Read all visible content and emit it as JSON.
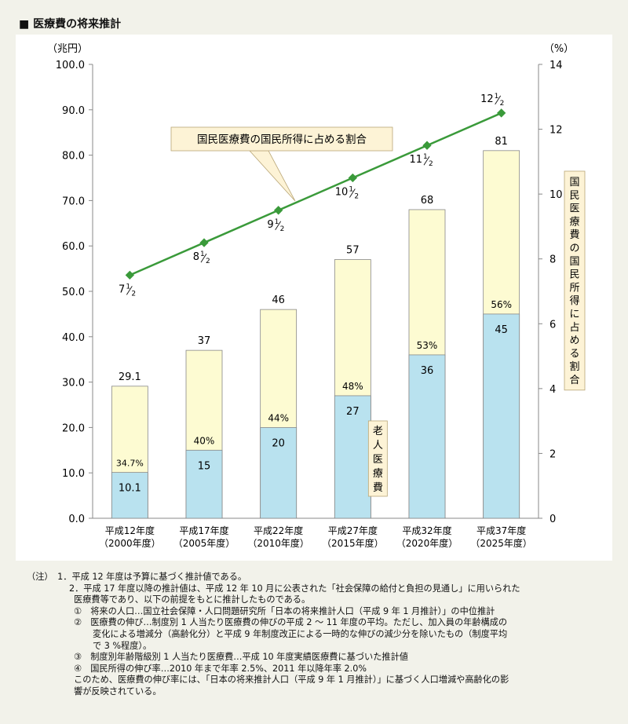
{
  "title": "■ 医療費の将来推計",
  "chart_data": {
    "type": "bar",
    "categories": [
      [
        "平成12年度",
        "（2000年度）"
      ],
      [
        "平成17年度",
        "（2005年度）"
      ],
      [
        "平成22年度",
        "（2010年度）"
      ],
      [
        "平成27年度",
        "（2015年度）"
      ],
      [
        "平成32年度",
        "（2020年度）"
      ],
      [
        "平成37年度",
        "（2025年度）"
      ]
    ],
    "series": [
      {
        "name": "老人医療費",
        "values": [
          10.1,
          15,
          20,
          27,
          36,
          45
        ]
      },
      {
        "values": [
          29.1,
          37,
          46,
          57,
          68,
          81
        ]
      }
    ],
    "bar_total_labels": [
      "29.1",
      "37",
      "46",
      "57",
      "68",
      "81"
    ],
    "bar_elderly_labels": [
      "10.1",
      "15",
      "20",
      "27",
      "36",
      "45"
    ],
    "share_labels": [
      "34.7%",
      "40%",
      "44%",
      "48%",
      "53%",
      "56%"
    ],
    "line": {
      "name": "国民医療費の国民所得に占める割合",
      "values": [
        7.5,
        8.5,
        9.5,
        10.5,
        11.5,
        12.5
      ],
      "labels": [
        [
          "7",
          "1",
          "2"
        ],
        [
          "8",
          "1",
          "2"
        ],
        [
          "9",
          "1",
          "2"
        ],
        [
          "10",
          "1",
          "2"
        ],
        [
          "11",
          "1",
          "2"
        ],
        [
          "12",
          "1",
          "2"
        ]
      ]
    },
    "left_axis": {
      "unit": "（兆円）",
      "ylim": [
        0,
        100
      ],
      "ticks": [
        "0.0",
        "10.0",
        "20.0",
        "30.0",
        "40.0",
        "50.0",
        "60.0",
        "70.0",
        "80.0",
        "90.0",
        "100.0"
      ]
    },
    "right_axis": {
      "unit": "（%）",
      "ylim": [
        0,
        14
      ],
      "ticks": [
        "0",
        "2",
        "4",
        "6",
        "8",
        "10",
        "12",
        "14"
      ],
      "title": "国民医療費の国民所得に占める割合"
    },
    "annotation_elderly": "老人医療費",
    "colors": {
      "total": "#fdfbd2",
      "elderly": "#b9e2ef",
      "line": "#3a9a3a",
      "label_box": "#fdf3d6"
    }
  },
  "notes": {
    "head": "（注）",
    "lines": [
      {
        "num": "1．",
        "text": "平成 12 年度は予算に基づく推計値である。"
      },
      {
        "num": "2．",
        "text": "平成 17 年度以降の推計値は、平成 12 年 10 月に公表された「社会保障の給付と負担の見通し」に用いられた"
      }
    ],
    "cont": [
      "医療費等であり、以下の前提をもとに推計したものである。"
    ],
    "items": [
      {
        "mark": "①",
        "lines": [
          "将来の人口…国立社会保障・人口問題研究所「日本の将来推計人口（平成 9 年 1 月推計）」の中位推計"
        ]
      },
      {
        "mark": "②",
        "lines": [
          "医療費の伸び…制度別 1 人当たり医療費の伸びの平成 2 ～ 11 年度の平均。ただし、加入員の年齢構成の",
          "変化による増減分（高齢化分）と平成 9 年制度改正による一時的な伸びの減少分を除いたもの（制度平均",
          "で 3 %程度）。"
        ]
      },
      {
        "mark": "③",
        "lines": [
          "制度別年齢階級別 1 人当たり医療費…平成 10 年度実績医療費に基づいた推計値"
        ]
      },
      {
        "mark": "④",
        "lines": [
          "国民所得の伸び率…2010 年まで年率 2.5%、2011 年以降年率 2.0%"
        ]
      }
    ],
    "tail": [
      "このため、医療費の伸び率には、「日本の将来推計人口（平成 9 年 1 月推計）」に基づく人口増減や高齢化の影",
      "響が反映されている。"
    ]
  }
}
